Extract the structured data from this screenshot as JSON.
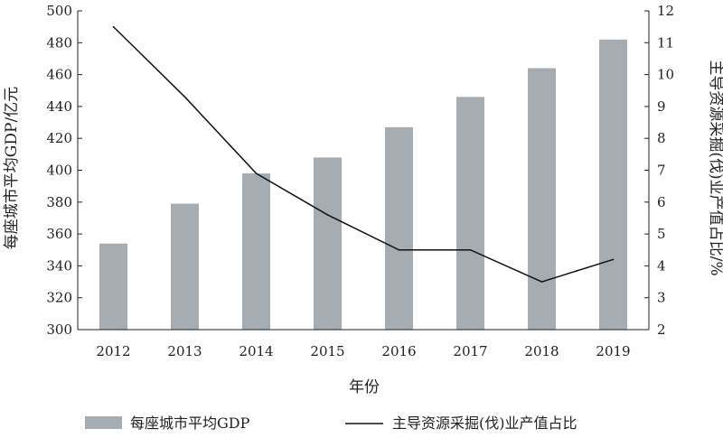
{
  "chart_data": {
    "type": "bar",
    "categories": [
      "2012",
      "2013",
      "2014",
      "2015",
      "2016",
      "2017",
      "2018",
      "2019"
    ],
    "xlabel": "年份",
    "series": [
      {
        "name": "每座城市平均GDP",
        "type": "bar",
        "axis": "left",
        "color": "#a5adb2",
        "values": [
          354,
          379,
          398,
          408,
          427,
          446,
          464,
          482
        ]
      },
      {
        "name": "主导资源采掘(伐)业产值占比",
        "type": "line",
        "axis": "right",
        "color": "#111111",
        "values": [
          11.5,
          9.3,
          6.9,
          5.6,
          4.5,
          4.5,
          3.5,
          4.2
        ]
      }
    ],
    "y_left": {
      "label": "每座城市平均GDP/亿元",
      "min": 300,
      "max": 500,
      "ticks": [
        300,
        320,
        340,
        360,
        380,
        400,
        420,
        440,
        460,
        480,
        500
      ]
    },
    "y_right": {
      "label": "主导资源采掘(伐)业产值占比/%",
      "min": 2,
      "max": 12,
      "ticks": [
        2,
        3,
        4,
        5,
        6,
        7,
        8,
        9,
        10,
        11,
        12
      ]
    },
    "grid": false,
    "legend_position": "bottom"
  }
}
